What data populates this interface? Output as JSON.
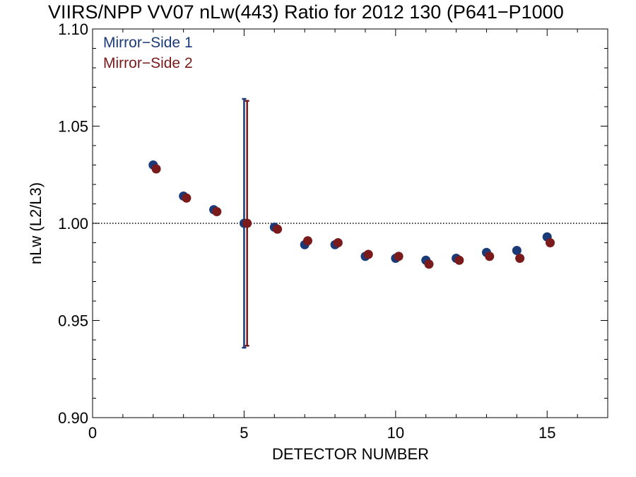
{
  "chart_data": {
    "type": "scatter",
    "title": "VIIRS/NPP VV07 nLw(443) Ratio for 2012 130 (P641−P1000",
    "xlabel": "DETECTOR NUMBER",
    "ylabel": "nLw (L2/L3)",
    "xlim": [
      0,
      17
    ],
    "ylim": [
      0.9,
      1.1
    ],
    "x_ticks": [
      0,
      5,
      10,
      15
    ],
    "x_tick_labels": [
      "0",
      "5",
      "10",
      "15"
    ],
    "y_ticks": [
      0.9,
      0.95,
      1.0,
      1.05,
      1.1
    ],
    "y_tick_labels": [
      "0.90",
      "0.95",
      "1.00",
      "1.05",
      "1.10"
    ],
    "reference_line": 1.0,
    "grid": false,
    "legend_position": "top-left",
    "series": [
      {
        "name": "Mirror−Side 1",
        "color": "#1a3a78",
        "x": [
          2,
          3,
          4,
          5,
          6,
          7,
          8,
          9,
          10,
          11,
          12,
          13,
          14,
          15
        ],
        "values": [
          1.03,
          1.014,
          1.007,
          1.0,
          0.998,
          0.989,
          0.989,
          0.983,
          0.982,
          0.981,
          0.982,
          0.985,
          0.986,
          0.993
        ],
        "error_bar": {
          "x": 5,
          "low": 0.936,
          "high": 1.064
        }
      },
      {
        "name": "Mirror−Side 2",
        "color": "#7a1a1a",
        "x": [
          2.1,
          3.1,
          4.1,
          5.1,
          6.1,
          7.1,
          8.1,
          9.1,
          10.1,
          11.1,
          12.1,
          13.1,
          14.1,
          15.1
        ],
        "values": [
          1.028,
          1.013,
          1.006,
          1.0,
          0.997,
          0.991,
          0.99,
          0.984,
          0.983,
          0.979,
          0.981,
          0.983,
          0.982,
          0.99
        ],
        "error_bar": {
          "x": 5.1,
          "low": 0.937,
          "high": 1.063
        }
      }
    ]
  }
}
